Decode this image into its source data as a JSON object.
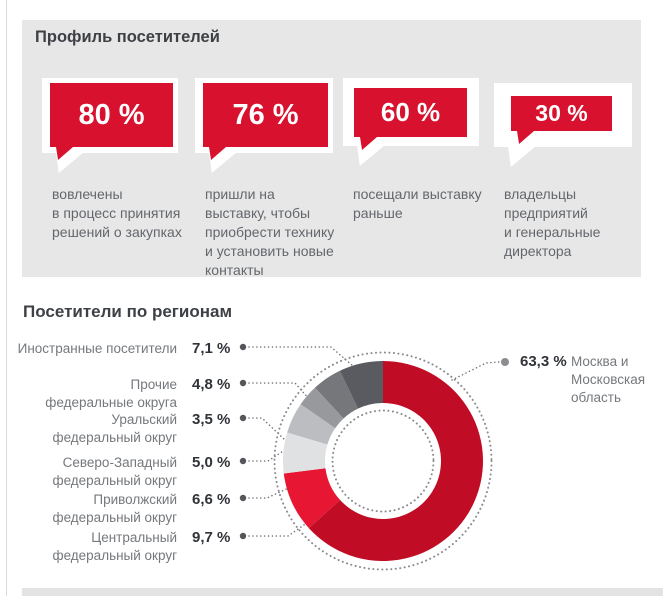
{
  "accent_red": "#d8112f",
  "profile_section": {
    "title": "Профиль посетителей",
    "bg": "#e7e7e7",
    "bubble_color": "#d8112f",
    "items": [
      {
        "value": "80 %",
        "description": "вовлечены\nв процесс принятия\nрешений о закупках"
      },
      {
        "value": "76 %",
        "description": "пришли на\nвыставку, чтобы\nприобрести технику\nи установить новые\nконтакты"
      },
      {
        "value": "60 %",
        "description": "посещали выставку\nраньше"
      },
      {
        "value": "30 %",
        "description": "владельцы\nпредприятий\nи генеральные\nдиректора"
      }
    ]
  },
  "regions_section": {
    "title": "Посетители по регионам",
    "left_labels": [
      {
        "name": "Иностранные посетители",
        "percent": "7,1 %"
      },
      {
        "name": "Прочие\nфедеральные округа",
        "percent": "4,8 %"
      },
      {
        "name": "Уральский\nфедеральный округ",
        "percent": "3,5 %"
      },
      {
        "name": "Северо-Западный\nфедеральный округ",
        "percent": "5,0 %"
      },
      {
        "name": "Приволжский\nфедеральный округ",
        "percent": "6,6 %"
      },
      {
        "name": "Центральный\nфедеральный округ",
        "percent": "9,7 %"
      }
    ],
    "right_label": {
      "percent": "63,3 %",
      "name": "Москва и\nМосковская\nобласть"
    }
  },
  "chart_data": {
    "type": "pie",
    "donut": true,
    "title": "Посетители по регионам",
    "start_angle_deg": 0,
    "direction": "clockwise",
    "legend_position": "left",
    "segments": [
      {
        "label": "Москва и Московская область",
        "value": 63.3,
        "color": "#c00c24"
      },
      {
        "label": "Центральный федеральный округ",
        "value": 9.7,
        "color": "#e71734"
      },
      {
        "label": "Приволжский федеральный округ",
        "value": 6.6,
        "color": "#e0e1e3"
      },
      {
        "label": "Северо-Западный федеральный округ",
        "value": 5.0,
        "color": "#bcbdc0"
      },
      {
        "label": "Уральский федеральный округ",
        "value": 3.5,
        "color": "#97999d"
      },
      {
        "label": "Прочие федеральные округа",
        "value": 4.8,
        "color": "#76777b"
      },
      {
        "label": "Иностранные посетители",
        "value": 7.1,
        "color": "#595b60"
      }
    ]
  }
}
